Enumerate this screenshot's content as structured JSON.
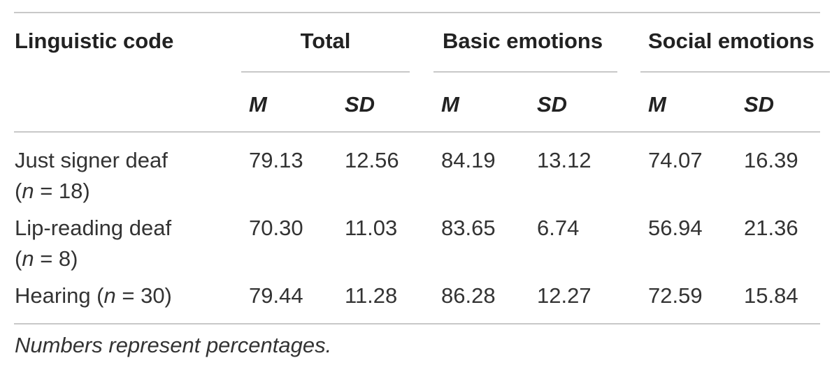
{
  "table": {
    "header": {
      "col0": "Linguistic code",
      "groups": [
        "Total",
        "Basic emotions",
        "Social emotions"
      ],
      "sub": [
        "M",
        "SD",
        "M",
        "SD",
        "M",
        "SD"
      ]
    },
    "rows": [
      {
        "label_line1": "Just signer deaf",
        "label_line2": "(n = 18)",
        "values": [
          "79.13",
          "12.56",
          "84.19",
          "13.12",
          "74.07",
          "16.39"
        ]
      },
      {
        "label_line1": "Lip-reading deaf",
        "label_line2": "(n = 8)",
        "values": [
          "70.30",
          "11.03",
          "83.65",
          "6.74",
          "56.94",
          "21.36"
        ]
      },
      {
        "label_line1": "Hearing (n = 30)",
        "values": [
          "79.44",
          "11.28",
          "86.28",
          "12.27",
          "72.59",
          "15.84"
        ]
      }
    ],
    "note": "Numbers represent percentages."
  }
}
